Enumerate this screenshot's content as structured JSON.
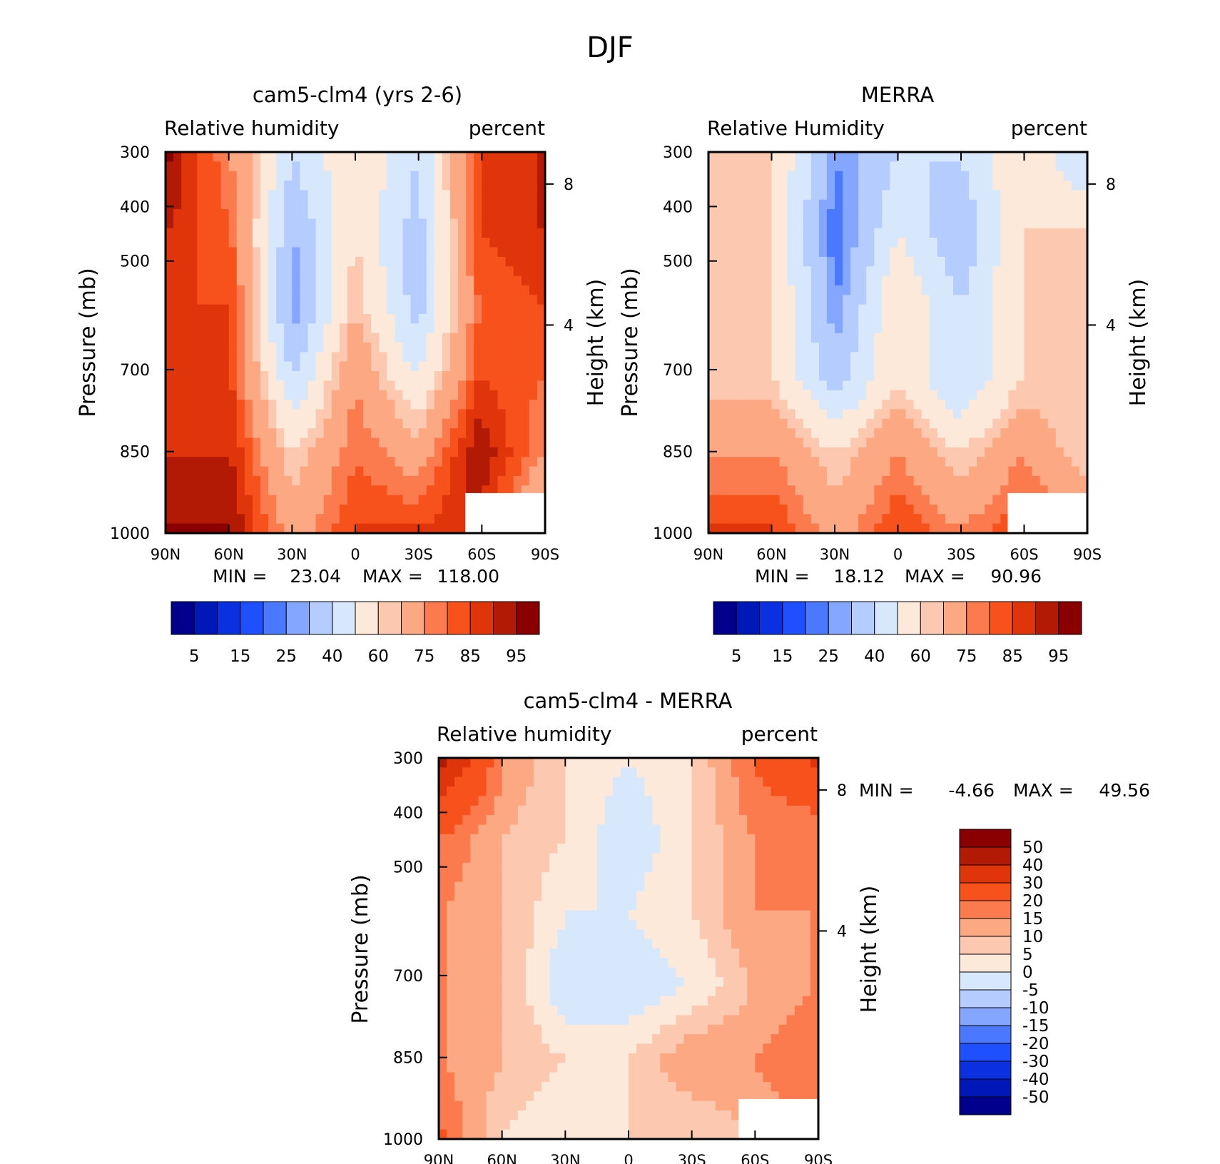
{
  "title": "DJF",
  "colors": {
    "abs_scale": [
      "#00008c",
      "#0018b8",
      "#0a30e0",
      "#1f50ff",
      "#4a78ff",
      "#84a6ff",
      "#b4ccff",
      "#d8e8fc",
      "#fde9da",
      "#fcc8af",
      "#fca882",
      "#fb7a4e",
      "#f7511c",
      "#e0340a",
      "#b21a05",
      "#8a0000"
    ],
    "diff_scale": [
      "#00008c",
      "#0018b8",
      "#0a30e0",
      "#1f50ff",
      "#4a78ff",
      "#84a6ff",
      "#b4ccff",
      "#d8e8fc",
      "#fde9da",
      "#fcc8af",
      "#fca882",
      "#fb7a4e",
      "#f7511c",
      "#e0340a",
      "#b21a05",
      "#8a0000"
    ]
  },
  "chart_data": [
    {
      "type": "contour",
      "title": "cam5-clm4 (yrs 2-6)",
      "left_label": "Relative humidity",
      "right_label": "percent",
      "ylabel": "Pressure (mb)",
      "ylabel_right": "Height (km)",
      "x_ticks": [
        "90N",
        "60N",
        "30N",
        "0",
        "30S",
        "60S",
        "90S"
      ],
      "y_ticks": [
        "300",
        "400",
        "500",
        "700",
        "850",
        "1000"
      ],
      "y_right_ticks": [
        "8",
        "4"
      ],
      "min_label": "MIN =",
      "min_value": "23.04",
      "max_label": "MAX =",
      "max_value": "118.00",
      "colorbar_labels": [
        "5",
        "15",
        "25",
        "40",
        "60",
        "75",
        "85",
        "95"
      ],
      "columns": [
        {
          "lat": "90N",
          "values": [
            95,
            90,
            85,
            85,
            90,
            95
          ]
        },
        {
          "lat": "60N",
          "values": [
            75,
            80,
            85,
            85,
            90,
            95
          ]
        },
        {
          "lat": "30N",
          "values": [
            40,
            30,
            25,
            40,
            60,
            70
          ]
        },
        {
          "lat": "0",
          "values": [
            60,
            60,
            65,
            75,
            80,
            85
          ]
        },
        {
          "lat": "30S",
          "values": [
            40,
            35,
            35,
            50,
            70,
            85
          ]
        },
        {
          "lat": "60S",
          "values": [
            85,
            85,
            80,
            85,
            95,
            90
          ]
        },
        {
          "lat": "90S",
          "values": [
            90,
            90,
            85,
            80,
            75,
            60
          ]
        }
      ]
    },
    {
      "type": "contour",
      "title": "MERRA",
      "left_label": "Relative Humidity",
      "right_label": "percent",
      "ylabel": "Pressure (mb)",
      "ylabel_right": "Height (km)",
      "x_ticks": [
        "90N",
        "60N",
        "30N",
        "0",
        "30S",
        "60S",
        "90S"
      ],
      "y_ticks": [
        "300",
        "400",
        "500",
        "700",
        "850",
        "1000"
      ],
      "y_right_ticks": [
        "8",
        "4"
      ],
      "min_label": "MIN =",
      "min_value": "18.12",
      "max_label": "MAX =",
      "max_value": "90.96",
      "colorbar_labels": [
        "5",
        "15",
        "25",
        "40",
        "60",
        "75",
        "85",
        "95"
      ],
      "columns": [
        {
          "lat": "90N",
          "values": [
            60,
            60,
            60,
            60,
            75,
            85
          ]
        },
        {
          "lat": "60N",
          "values": [
            60,
            60,
            60,
            60,
            75,
            85
          ]
        },
        {
          "lat": "30N",
          "values": [
            25,
            20,
            25,
            35,
            60,
            70
          ]
        },
        {
          "lat": "0",
          "values": [
            40,
            50,
            60,
            60,
            75,
            85
          ]
        },
        {
          "lat": "30S",
          "values": [
            40,
            30,
            40,
            40,
            60,
            75
          ]
        },
        {
          "lat": "60S",
          "values": [
            60,
            60,
            60,
            60,
            75,
            85
          ]
        },
        {
          "lat": "90S",
          "values": [
            40,
            60,
            60,
            60,
            60,
            75
          ]
        }
      ]
    },
    {
      "type": "contour",
      "title": "cam5-clm4 - MERRA",
      "left_label": "Relative humidity",
      "right_label": "percent",
      "ylabel": "Pressure (mb)",
      "ylabel_right": "Height (km)",
      "x_ticks": [
        "90N",
        "60N",
        "30N",
        "0",
        "30S",
        "60S",
        "90S"
      ],
      "y_ticks": [
        "300",
        "400",
        "500",
        "700",
        "850",
        "1000"
      ],
      "y_right_ticks": [
        "8",
        "4"
      ],
      "min_label": "MIN =",
      "min_value": "-4.66",
      "max_label": "MAX =",
      "max_value": "49.56",
      "colorbar_labels": [
        "50",
        "40",
        "30",
        "20",
        "15",
        "10",
        "5",
        "0",
        "-5",
        "-10",
        "-15",
        "-20",
        "-30",
        "-40",
        "-50"
      ],
      "columns": [
        {
          "lat": "90N",
          "values": [
            40,
            20,
            15,
            15,
            15,
            20
          ]
        },
        {
          "lat": "60N",
          "values": [
            15,
            10,
            10,
            10,
            10,
            5
          ]
        },
        {
          "lat": "30N",
          "values": [
            5,
            5,
            0,
            -5,
            5,
            0
          ]
        },
        {
          "lat": "0",
          "values": [
            0,
            -5,
            0,
            -5,
            5,
            5
          ]
        },
        {
          "lat": "30S",
          "values": [
            5,
            5,
            5,
            0,
            15,
            5
          ]
        },
        {
          "lat": "60S",
          "values": [
            20,
            15,
            15,
            10,
            15,
            10
          ]
        },
        {
          "lat": "90S",
          "values": [
            30,
            15,
            15,
            15,
            20,
            15
          ]
        }
      ]
    }
  ]
}
